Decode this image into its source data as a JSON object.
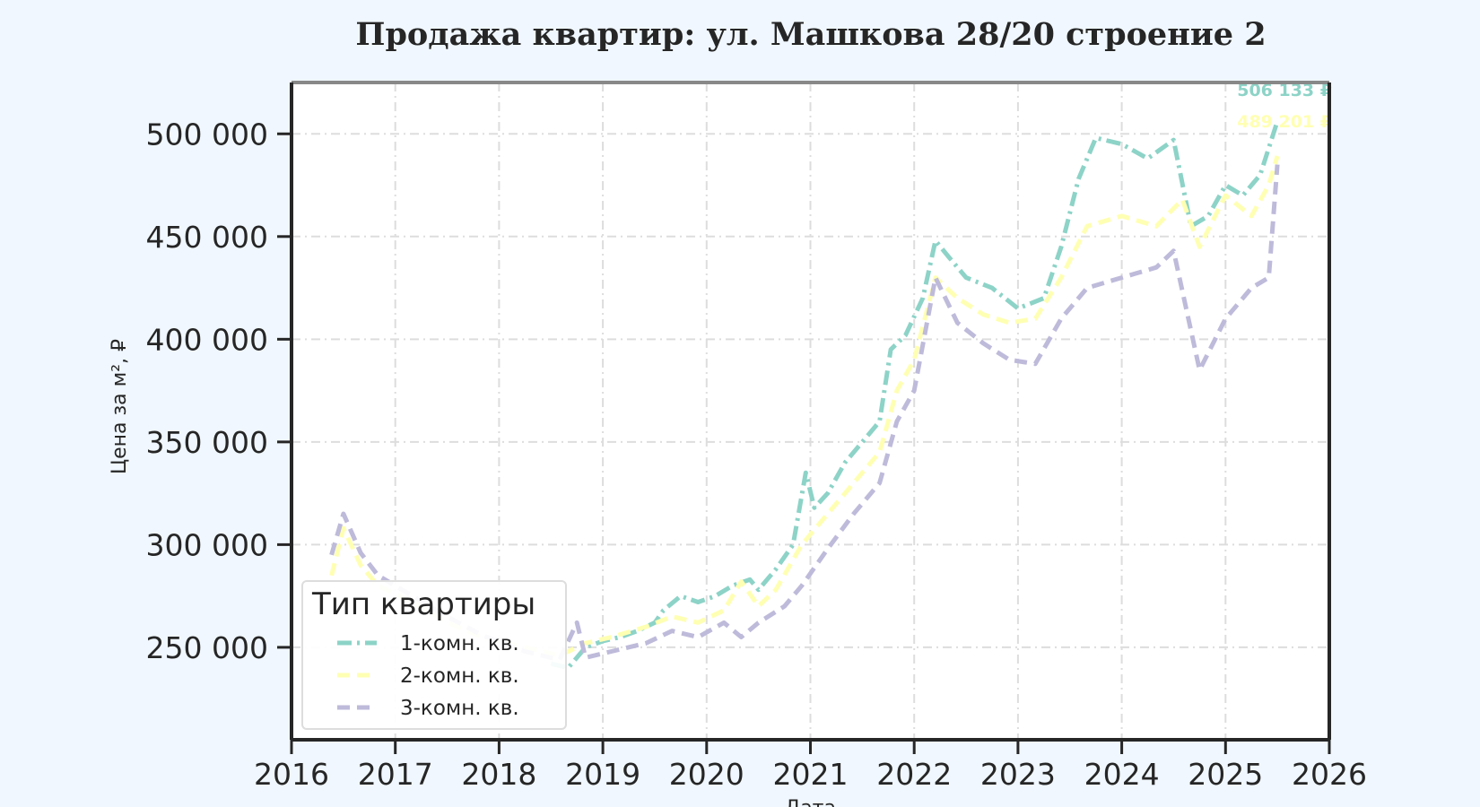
{
  "chart_data": {
    "type": "line",
    "title": "Продажа квартир: ул. Машкова 28/20 строение 2",
    "xlabel": "Дата",
    "ylabel": "Цена за м², ₽",
    "xlim": [
      2016,
      2026
    ],
    "ylim": [
      205000,
      525000
    ],
    "x_ticks": [
      "2016",
      "2017",
      "2018",
      "2019",
      "2020",
      "2021",
      "2022",
      "2023",
      "2024",
      "2025",
      "2026"
    ],
    "y_ticks": [
      "250 000",
      "300 000",
      "350 000",
      "400 000",
      "450 000",
      "500 000"
    ],
    "y_tick_values": [
      250000,
      300000,
      350000,
      400000,
      450000,
      500000
    ],
    "grid": true,
    "legend": {
      "title": "Тип квартиры",
      "position": "lower-left"
    },
    "end_labels": [
      "506 133 ₽",
      "489 201 ₽"
    ],
    "series": [
      {
        "name": "1-комн. кв.",
        "color": "#8dd3c7",
        "dash": "dashdot",
        "points": [
          [
            "2018-07-01",
            242000
          ],
          [
            "2018-09-01",
            240000
          ],
          [
            "2018-11-01",
            250000
          ],
          [
            "2019-01-01",
            253000
          ],
          [
            "2019-03-01",
            255000
          ],
          [
            "2019-05-01",
            258000
          ],
          [
            "2019-07-01",
            262000
          ],
          [
            "2019-08-01",
            268000
          ],
          [
            "2019-10-01",
            275000
          ],
          [
            "2019-12-01",
            272000
          ],
          [
            "2020-02-01",
            275000
          ],
          [
            "2020-04-01",
            280000
          ],
          [
            "2020-06-01",
            283000
          ],
          [
            "2020-07-01",
            278000
          ],
          [
            "2020-09-01",
            288000
          ],
          [
            "2020-11-01",
            300000
          ],
          [
            "2020-12-15",
            335000
          ],
          [
            "2021-01-15",
            318000
          ],
          [
            "2021-03-01",
            325000
          ],
          [
            "2021-05-01",
            340000
          ],
          [
            "2021-07-01",
            350000
          ],
          [
            "2021-09-01",
            360000
          ],
          [
            "2021-10-10",
            395000
          ],
          [
            "2021-12-01",
            402000
          ],
          [
            "2022-02-01",
            420000
          ],
          [
            "2022-03-15",
            448000
          ],
          [
            "2022-05-01",
            440000
          ],
          [
            "2022-07-01",
            430000
          ],
          [
            "2022-10-01",
            425000
          ],
          [
            "2023-01-01",
            415000
          ],
          [
            "2023-04-01",
            420000
          ],
          [
            "2023-06-01",
            445000
          ],
          [
            "2023-08-01",
            478000
          ],
          [
            "2023-10-01",
            498000
          ],
          [
            "2024-01-01",
            495000
          ],
          [
            "2024-04-01",
            488000
          ],
          [
            "2024-07-01",
            497000
          ],
          [
            "2024-09-01",
            455000
          ],
          [
            "2024-11-01",
            460000
          ],
          [
            "2025-01-01",
            475000
          ],
          [
            "2025-03-01",
            470000
          ],
          [
            "2025-05-01",
            480000
          ],
          [
            "2025-07-01",
            506133
          ]
        ]
      },
      {
        "name": "2-комн. кв.",
        "color": "#ffffb3",
        "dash": "dashed",
        "points": [
          [
            "2016-05-20",
            285000
          ],
          [
            "2016-07-01",
            308000
          ],
          [
            "2016-09-01",
            290000
          ],
          [
            "2016-11-01",
            280000
          ],
          [
            "2017-03-01",
            272000
          ],
          [
            "2017-07-01",
            262000
          ],
          [
            "2017-11-01",
            255000
          ],
          [
            "2018-04-01",
            250000
          ],
          [
            "2018-08-01",
            246000
          ],
          [
            "2018-11-01",
            252000
          ],
          [
            "2019-02-01",
            255000
          ],
          [
            "2019-06-01",
            260000
          ],
          [
            "2019-09-01",
            265000
          ],
          [
            "2019-12-01",
            262000
          ],
          [
            "2020-03-01",
            268000
          ],
          [
            "2020-05-01",
            282000
          ],
          [
            "2020-07-01",
            270000
          ],
          [
            "2020-09-01",
            278000
          ],
          [
            "2020-12-01",
            300000
          ],
          [
            "2021-03-01",
            315000
          ],
          [
            "2021-06-01",
            330000
          ],
          [
            "2021-09-01",
            345000
          ],
          [
            "2021-11-01",
            375000
          ],
          [
            "2022-01-01",
            390000
          ],
          [
            "2022-03-15",
            430000
          ],
          [
            "2022-06-01",
            420000
          ],
          [
            "2022-09-01",
            412000
          ],
          [
            "2022-12-01",
            408000
          ],
          [
            "2023-03-01",
            410000
          ],
          [
            "2023-06-01",
            430000
          ],
          [
            "2023-09-01",
            455000
          ],
          [
            "2024-01-01",
            460000
          ],
          [
            "2024-05-01",
            455000
          ],
          [
            "2024-08-01",
            468000
          ],
          [
            "2024-10-01",
            445000
          ],
          [
            "2025-01-01",
            470000
          ],
          [
            "2025-04-01",
            460000
          ],
          [
            "2025-06-01",
            475000
          ],
          [
            "2025-07-01",
            489201
          ]
        ]
      },
      {
        "name": "3-комн. кв.",
        "color": "#bebada",
        "dash": "dashed",
        "points": [
          [
            "2016-05-20",
            295000
          ],
          [
            "2016-07-01",
            315000
          ],
          [
            "2016-09-01",
            296000
          ],
          [
            "2016-11-01",
            285000
          ],
          [
            "2017-03-01",
            275000
          ],
          [
            "2017-07-01",
            265000
          ],
          [
            "2017-11-01",
            256000
          ],
          [
            "2018-04-01",
            248000
          ],
          [
            "2018-08-01",
            244000
          ],
          [
            "2018-10-01",
            262000
          ],
          [
            "2018-11-01",
            245000
          ],
          [
            "2019-02-01",
            248000
          ],
          [
            "2019-06-01",
            252000
          ],
          [
            "2019-09-01",
            258000
          ],
          [
            "2019-12-01",
            255000
          ],
          [
            "2020-03-01",
            262000
          ],
          [
            "2020-05-01",
            255000
          ],
          [
            "2020-07-01",
            262000
          ],
          [
            "2020-10-01",
            270000
          ],
          [
            "2020-12-01",
            280000
          ],
          [
            "2021-03-01",
            298000
          ],
          [
            "2021-06-01",
            315000
          ],
          [
            "2021-09-01",
            330000
          ],
          [
            "2021-11-01",
            360000
          ],
          [
            "2022-01-01",
            375000
          ],
          [
            "2022-03-15",
            430000
          ],
          [
            "2022-06-01",
            408000
          ],
          [
            "2022-09-01",
            398000
          ],
          [
            "2022-12-01",
            390000
          ],
          [
            "2023-03-01",
            388000
          ],
          [
            "2023-06-01",
            410000
          ],
          [
            "2023-09-01",
            425000
          ],
          [
            "2024-01-01",
            430000
          ],
          [
            "2024-05-01",
            435000
          ],
          [
            "2024-07-01",
            443000
          ],
          [
            "2024-10-01",
            385000
          ],
          [
            "2025-01-01",
            410000
          ],
          [
            "2025-04-01",
            425000
          ],
          [
            "2025-06-01",
            430000
          ],
          [
            "2025-07-01",
            485000
          ]
        ]
      }
    ]
  }
}
